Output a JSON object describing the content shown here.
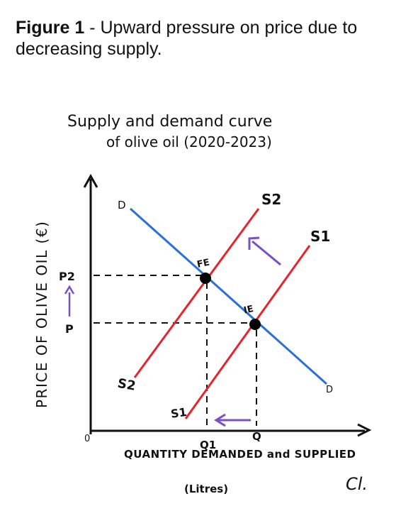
{
  "caption": {
    "label": "Figure 1",
    "text": " - Upward pressure on price due to decreasing supply."
  },
  "diagram": {
    "title_line1": "Supply and demand curve",
    "title_line2": "of olive oil (2020-2023)",
    "y_axis_label": "PRICE OF OLIVE OIL (€)",
    "x_axis_label": "QUANTITY DEMANDED and SUPPLIED",
    "x_axis_unit": "(Litres)",
    "origin_label": "0",
    "price_labels": {
      "p1": "P",
      "p2": "P2"
    },
    "quantity_labels": {
      "q": "Q",
      "q1": "Q1"
    },
    "curves": {
      "demand": {
        "start_label": "D",
        "end_label": "D",
        "color": "#2b6fd8"
      },
      "supply_original": {
        "top_label": "S1",
        "bottom_label": "S1",
        "color": "#e8232b"
      },
      "supply_shifted": {
        "top_label": "S2",
        "bottom_label": "S2",
        "color": "#e8232b"
      }
    },
    "equilibria": {
      "initial": "IE",
      "final": "FE"
    },
    "arrow_color": "#7b4fc4",
    "signature": "Cl."
  }
}
